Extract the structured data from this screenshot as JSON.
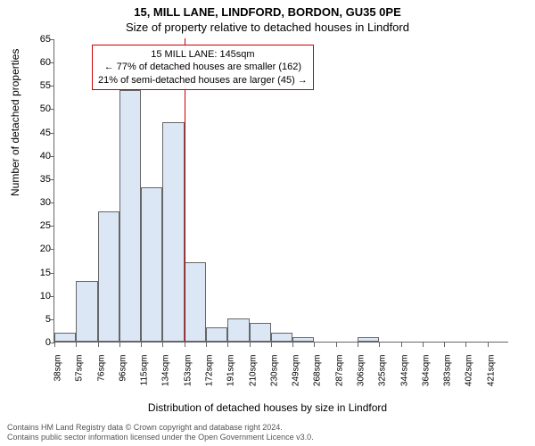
{
  "title_line1": "15, MILL LANE, LINDFORD, BORDON, GU35 0PE",
  "title_line2": "Size of property relative to detached houses in Lindford",
  "ylabel": "Number of detached properties",
  "xlabel": "Distribution of detached houses by size in Lindford",
  "chart": {
    "type": "histogram",
    "background_color": "#ffffff",
    "bar_fill": "#dbe7f5",
    "bar_border": "#666666",
    "axis_color": "#666666",
    "marker_color": "#cc0000",
    "ylim": [
      0,
      65
    ],
    "ytick_step": 5,
    "x_categories": [
      "38sqm",
      "57sqm",
      "76sqm",
      "96sqm",
      "115sqm",
      "134sqm",
      "153sqm",
      "172sqm",
      "191sqm",
      "210sqm",
      "230sqm",
      "249sqm",
      "268sqm",
      "287sqm",
      "306sqm",
      "325sqm",
      "344sqm",
      "364sqm",
      "383sqm",
      "402sqm",
      "421sqm"
    ],
    "values": [
      2,
      13,
      28,
      54,
      33,
      47,
      17,
      3,
      5,
      4,
      2,
      1,
      0,
      0,
      1,
      0,
      0,
      0,
      0,
      0,
      0
    ],
    "marker_bin_index": 5,
    "annotation": {
      "line1": "15 MILL LANE: 145sqm",
      "line2": "← 77% of detached houses are smaller (162)",
      "line3": "21% of semi-detached houses are larger (45) →",
      "fontsize": 11,
      "border_color": "#cc0000"
    }
  },
  "footer": {
    "line1": "Contains HM Land Registry data © Crown copyright and database right 2024.",
    "line2": "Contains public sector information licensed under the Open Government Licence v3.0."
  }
}
